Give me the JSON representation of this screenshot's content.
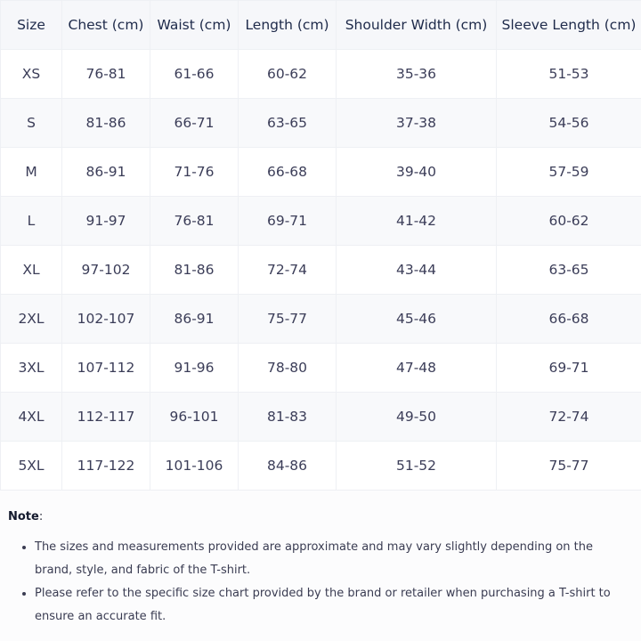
{
  "table": {
    "headers": [
      "Size",
      "Chest (cm)",
      "Waist (cm)",
      "Length (cm)",
      "Shoulder Width (cm)",
      "Sleeve Length (cm)"
    ],
    "rows": [
      [
        "XS",
        "76-81",
        "61-66",
        "60-62",
        "35-36",
        "51-53"
      ],
      [
        "S",
        "81-86",
        "66-71",
        "63-65",
        "37-38",
        "54-56"
      ],
      [
        "M",
        "86-91",
        "71-76",
        "66-68",
        "39-40",
        "57-59"
      ],
      [
        "L",
        "91-97",
        "76-81",
        "69-71",
        "41-42",
        "60-62"
      ],
      [
        "XL",
        "97-102",
        "81-86",
        "72-74",
        "43-44",
        "63-65"
      ],
      [
        "2XL",
        "102-107",
        "86-91",
        "75-77",
        "45-46",
        "66-68"
      ],
      [
        "3XL",
        "107-112",
        "91-96",
        "78-80",
        "47-48",
        "69-71"
      ],
      [
        "4XL",
        "112-117",
        "96-101",
        "81-83",
        "49-50",
        "72-74"
      ],
      [
        "5XL",
        "117-122",
        "101-106",
        "84-86",
        "51-52",
        "75-77"
      ]
    ]
  },
  "note": {
    "label": "Note",
    "colon": ":",
    "items": [
      "The sizes and measurements provided are approximate and may vary slightly depending on the brand, style, and fabric of the T-shirt.",
      "Please refer to the specific size chart provided by the brand or retailer when purchasing a T-shirt to ensure an accurate fit."
    ]
  }
}
